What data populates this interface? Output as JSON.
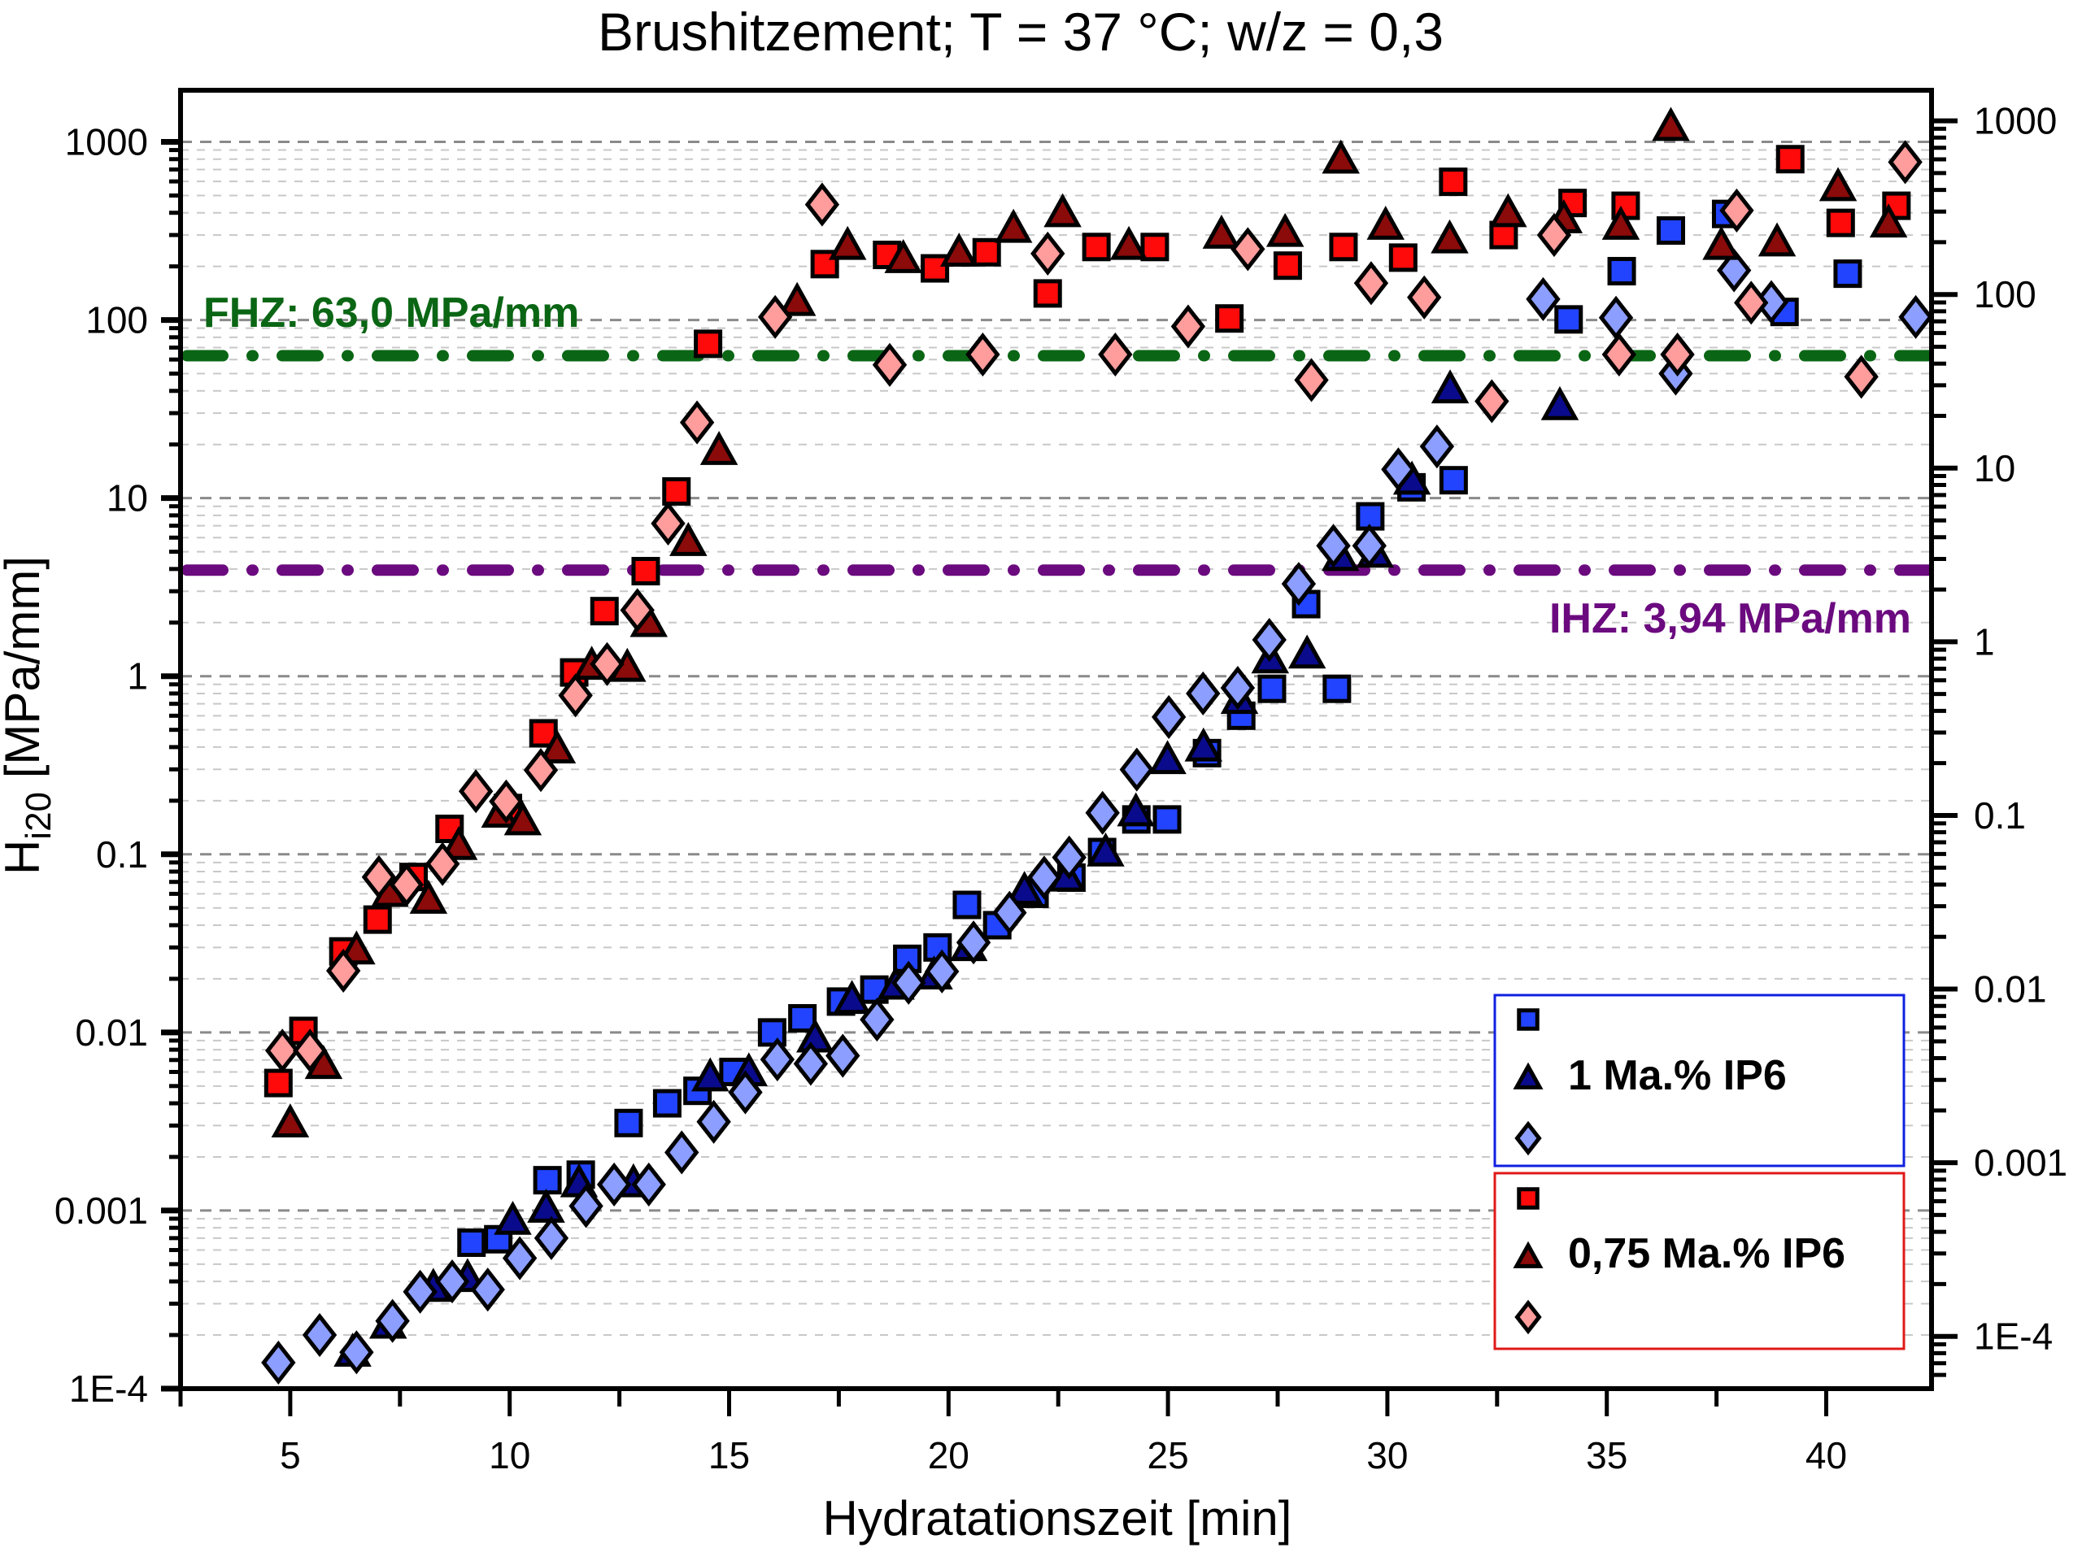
{
  "chart_data": {
    "type": "scatter",
    "title": "Brushitzement; T = 37 °C; w/z = 0,3",
    "xlabel": "Hydratationszeit [min]",
    "ylabel": "H",
    "ylabel_sub": "i20",
    "ylabel_unit": " [MPa/mm]",
    "xlim": [
      2.5,
      42.4
    ],
    "ylim": [
      0.0001,
      1950
    ],
    "yscale": "log",
    "grid": true,
    "x_ticks": [
      "5",
      "10",
      "15",
      "20",
      "25",
      "30",
      "35",
      "40"
    ],
    "x_tick_values": [
      5,
      10,
      15,
      20,
      25,
      30,
      35,
      40
    ],
    "y_ticks": [
      "1E-4",
      "0.001",
      "0.01",
      "0.1",
      "1",
      "10",
      "100",
      "1000"
    ],
    "y_tick_values": [
      0.0001,
      0.001,
      0.01,
      0.1,
      1,
      10,
      100,
      1000
    ],
    "y2_ticks": [
      "1E-4",
      "0.001",
      "0.01",
      "0.1",
      "1",
      "10",
      "100",
      "1000"
    ],
    "y2_tick_values": [
      0.0001,
      0.001,
      0.01,
      0.1,
      1,
      10,
      100,
      1000
    ],
    "y2lim": [
      5e-05,
      1500
    ],
    "reference_lines": [
      {
        "name": "FHZ",
        "label": "FHZ: 63,0 MPa/mm",
        "value": 63.0,
        "color": "#0a6614"
      },
      {
        "name": "IHZ",
        "label": "IHZ: 3,94 MPa/mm",
        "value": 3.94,
        "color": "#6b0a7f"
      }
    ],
    "legend": {
      "placement": "bottom-right",
      "groups": [
        {
          "label": "1 Ma.% IP6",
          "border": "#1020e0",
          "series": [
            "blue_square",
            "blue_triangle",
            "blue_diamond"
          ]
        },
        {
          "label": "0,75 Ma.% IP6",
          "border": "#e01818",
          "series": [
            "red_square",
            "red_triangle",
            "red_diamond"
          ]
        }
      ]
    },
    "series": [
      {
        "name": "blue_square",
        "group": "1 Ma.% IP6",
        "marker": "square",
        "color": "#2244ff",
        "x": [
          9.13,
          9.74,
          10.86,
          11.62,
          12.71,
          13.59,
          14.28,
          15.1,
          15.98,
          16.67,
          17.55,
          18.31,
          19.06,
          19.75,
          20.42,
          21.11,
          21.96,
          22.8,
          23.5,
          24.28,
          24.98,
          25.89,
          26.67,
          27.37,
          28.15,
          28.85,
          29.61,
          30.55,
          31.51,
          34.13,
          35.34,
          36.46,
          37.72,
          39.05,
          40.49
        ],
        "y": [
          0.00066,
          0.00069,
          0.00148,
          0.00159,
          0.0031,
          0.004,
          0.0047,
          0.006,
          0.01,
          0.012,
          0.0149,
          0.0174,
          0.0259,
          0.03,
          0.052,
          0.04,
          0.06,
          0.074,
          0.103,
          0.157,
          0.157,
          0.37,
          0.6,
          0.85,
          2.54,
          0.85,
          7.9,
          11.5,
          12.6,
          100.8,
          188,
          318,
          394,
          111,
          182
        ]
      },
      {
        "name": "blue_triangle",
        "group": "1 Ma.% IP6",
        "marker": "triangle",
        "color": "#0a0a8c",
        "x": [
          6.42,
          7.23,
          8.26,
          9.04,
          10.07,
          10.83,
          11.58,
          12.82,
          14.57,
          15.45,
          16.96,
          17.8,
          18.8,
          19.67,
          20.46,
          21.73,
          22.7,
          23.58,
          24.27,
          24.99,
          25.81,
          26.63,
          27.33,
          28.17,
          28.93,
          29.72,
          30.56,
          31.43,
          33.93
        ],
        "y": [
          0.00016,
          0.00023,
          0.00037,
          0.00042,
          0.00088,
          0.00103,
          0.00143,
          0.00143,
          0.00562,
          0.006,
          0.0093,
          0.0153,
          0.0184,
          0.021,
          0.0303,
          0.0627,
          0.0744,
          0.103,
          0.173,
          0.34,
          0.4,
          0.74,
          1.25,
          1.33,
          4.7,
          4.9,
          12.6,
          41.0,
          33.0
        ]
      },
      {
        "name": "blue_diamond",
        "group": "1 Ma.% IP6",
        "marker": "diamond",
        "color": "#8c9eff",
        "x": [
          4.73,
          5.67,
          6.51,
          7.33,
          7.96,
          8.69,
          9.5,
          10.23,
          10.95,
          11.74,
          12.38,
          13.17,
          13.92,
          14.65,
          15.37,
          16.1,
          16.86,
          17.59,
          18.37,
          19.09,
          19.85,
          20.57,
          21.39,
          22.18,
          22.75,
          23.51,
          24.29,
          25.02,
          25.8,
          26.59,
          27.31,
          27.98,
          28.77,
          29.59,
          30.25,
          31.13,
          33.55,
          35.21,
          36.57,
          37.9,
          38.75,
          42.04
        ],
        "y": [
          0.00014,
          0.0002,
          0.00016,
          0.00024,
          0.00035,
          0.0004,
          0.00036,
          0.00054,
          0.0007,
          0.00106,
          0.0014,
          0.0014,
          0.00212,
          0.00315,
          0.00461,
          0.00705,
          0.00667,
          0.0074,
          0.0118,
          0.019,
          0.022,
          0.032,
          0.047,
          0.074,
          0.096,
          0.171,
          0.299,
          0.59,
          0.8,
          0.86,
          1.6,
          3.3,
          5.4,
          5.4,
          14.5,
          19.5,
          131,
          103,
          50.0,
          190,
          126,
          104
        ]
      },
      {
        "name": "red_square",
        "group": "0,75 Ma.% IP6",
        "marker": "square",
        "color": "#ff0a0a",
        "x": [
          4.73,
          5.3,
          6.21,
          6.99,
          7.81,
          8.63,
          9.96,
          10.77,
          11.47,
          12.16,
          13.1,
          13.8,
          14.52,
          17.18,
          18.6,
          19.69,
          20.87,
          22.26,
          23.37,
          24.7,
          26.4,
          27.73,
          29.0,
          30.36,
          31.5,
          32.65,
          34.22,
          35.43,
          39.18,
          40.33,
          41.6
        ],
        "y": [
          0.0052,
          0.0102,
          0.0285,
          0.043,
          0.0746,
          0.139,
          0.182,
          0.478,
          1.05,
          2.32,
          3.89,
          10.9,
          73.5,
          206,
          232,
          195,
          240,
          141,
          257,
          257,
          102,
          202,
          257,
          224,
          597,
          300,
          454,
          438,
          800,
          351,
          438
        ]
      },
      {
        "name": "red_triangle",
        "group": "0,75 Ma.% IP6",
        "marker": "triangle",
        "color": "#8b0a0a",
        "x": [
          5.0,
          5.76,
          6.51,
          7.27,
          8.15,
          8.84,
          9.78,
          10.3,
          11.08,
          11.87,
          12.68,
          13.17,
          14.07,
          14.77,
          16.55,
          17.7,
          18.97,
          20.24,
          21.48,
          22.6,
          24.11,
          26.22,
          27.67,
          28.94,
          29.96,
          31.42,
          32.75,
          34.02,
          35.32,
          36.46,
          37.61,
          38.88,
          40.27,
          41.42
        ],
        "y": [
          0.0031,
          0.0066,
          0.029,
          0.061,
          0.0559,
          0.112,
          0.17,
          0.154,
          0.39,
          1.15,
          1.12,
          2.0,
          5.7,
          18.5,
          127,
          262,
          221,
          240,
          327,
          400,
          262,
          303,
          310,
          800,
          340,
          285,
          400,
          370,
          340,
          1220,
          262,
          274,
          560,
          350
        ]
      },
      {
        "name": "red_diamond",
        "group": "0,75 Ma.% IP6",
        "marker": "diamond",
        "color": "#ff9c9c",
        "x": [
          4.82,
          5.45,
          6.21,
          7.02,
          7.65,
          8.47,
          9.23,
          9.92,
          10.71,
          11.5,
          12.22,
          12.91,
          13.61,
          14.27,
          16.05,
          17.12,
          18.66,
          20.78,
          22.26,
          23.8,
          25.46,
          26.82,
          28.27,
          29.63,
          30.84,
          32.38,
          33.8,
          35.28,
          36.61,
          37.96,
          38.29,
          40.8,
          41.8
        ],
        "y": [
          0.0079,
          0.0079,
          0.0222,
          0.0745,
          0.0675,
          0.0883,
          0.226,
          0.198,
          0.297,
          0.78,
          1.17,
          2.35,
          7.2,
          26.6,
          104,
          445,
          56,
          64,
          236,
          64,
          92,
          250,
          46,
          161,
          134,
          35,
          300,
          64,
          64,
          412,
          125,
          48,
          770
        ]
      }
    ]
  }
}
